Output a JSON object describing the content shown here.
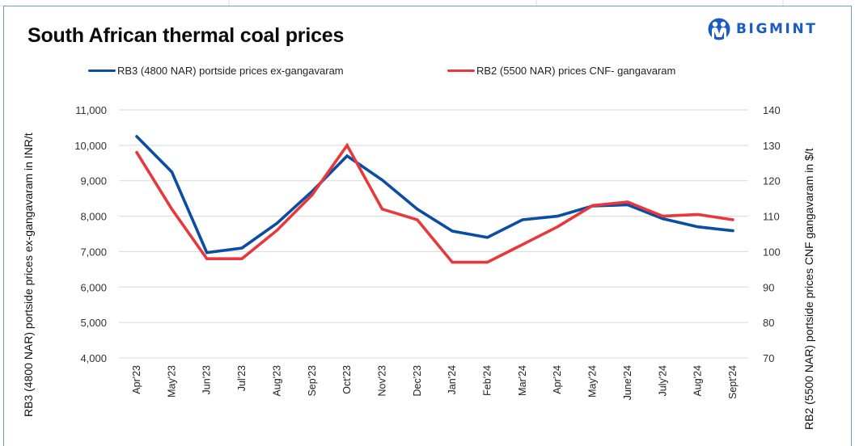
{
  "header": {
    "title": "South African thermal coal prices",
    "logo_text": "BIGMINT",
    "logo_icon": "people-logo-icon",
    "brand_color": "#1a5bc4"
  },
  "chart_data": {
    "type": "line",
    "title": "South African thermal coal prices",
    "categories": [
      "Apr'23",
      "May'23",
      "Jun'23",
      "Jul'23",
      "Aug'23",
      "Sep'23",
      "Oct'23",
      "Nov'23",
      "Dec'23",
      "Jan'24",
      "Feb'24",
      "Mar'24",
      "Apr'24",
      "May'24",
      "June'24",
      "July'24",
      "Aug'24",
      "Sept'24"
    ],
    "series": [
      {
        "name": "RB3 (4800 NAR) portside prices ex-gangavaram",
        "axis": "left",
        "color": "#0a4da2",
        "values": [
          10250,
          9250,
          6970,
          7100,
          7800,
          8700,
          9700,
          9020,
          8200,
          7580,
          7400,
          7900,
          8000,
          8290,
          8320,
          7930,
          7700,
          7590
        ]
      },
      {
        "name": "RB2 (5500 NAR) prices CNF- gangavaram",
        "axis": "right",
        "color": "#e8383b",
        "values": [
          128,
          112,
          98,
          98,
          106,
          116,
          130,
          112,
          109,
          97,
          97,
          102,
          107,
          113,
          114,
          110,
          110.5,
          109
        ]
      }
    ],
    "ylabel": "RB3 (4800 NAR) portside prices ex-gangavaram  in INR/t",
    "y2label": "RB2 (5500 NAR) portside prices CNF  gangavaram  in $/t",
    "xlabel": "",
    "ylim": [
      4000,
      11000
    ],
    "y2lim": [
      70,
      140
    ],
    "yticks": [
      "4,000",
      "5,000",
      "6,000",
      "7,000",
      "8,000",
      "9,000",
      "10,000",
      "11,000"
    ],
    "y2ticks": [
      "70",
      "80",
      "90",
      "100",
      "110",
      "120",
      "130",
      "140"
    ],
    "ytick_values": [
      4000,
      5000,
      6000,
      7000,
      8000,
      9000,
      10000,
      11000
    ],
    "y2tick_values": [
      70,
      80,
      90,
      100,
      110,
      120,
      130,
      140
    ],
    "grid": true,
    "legend_position": "top"
  }
}
